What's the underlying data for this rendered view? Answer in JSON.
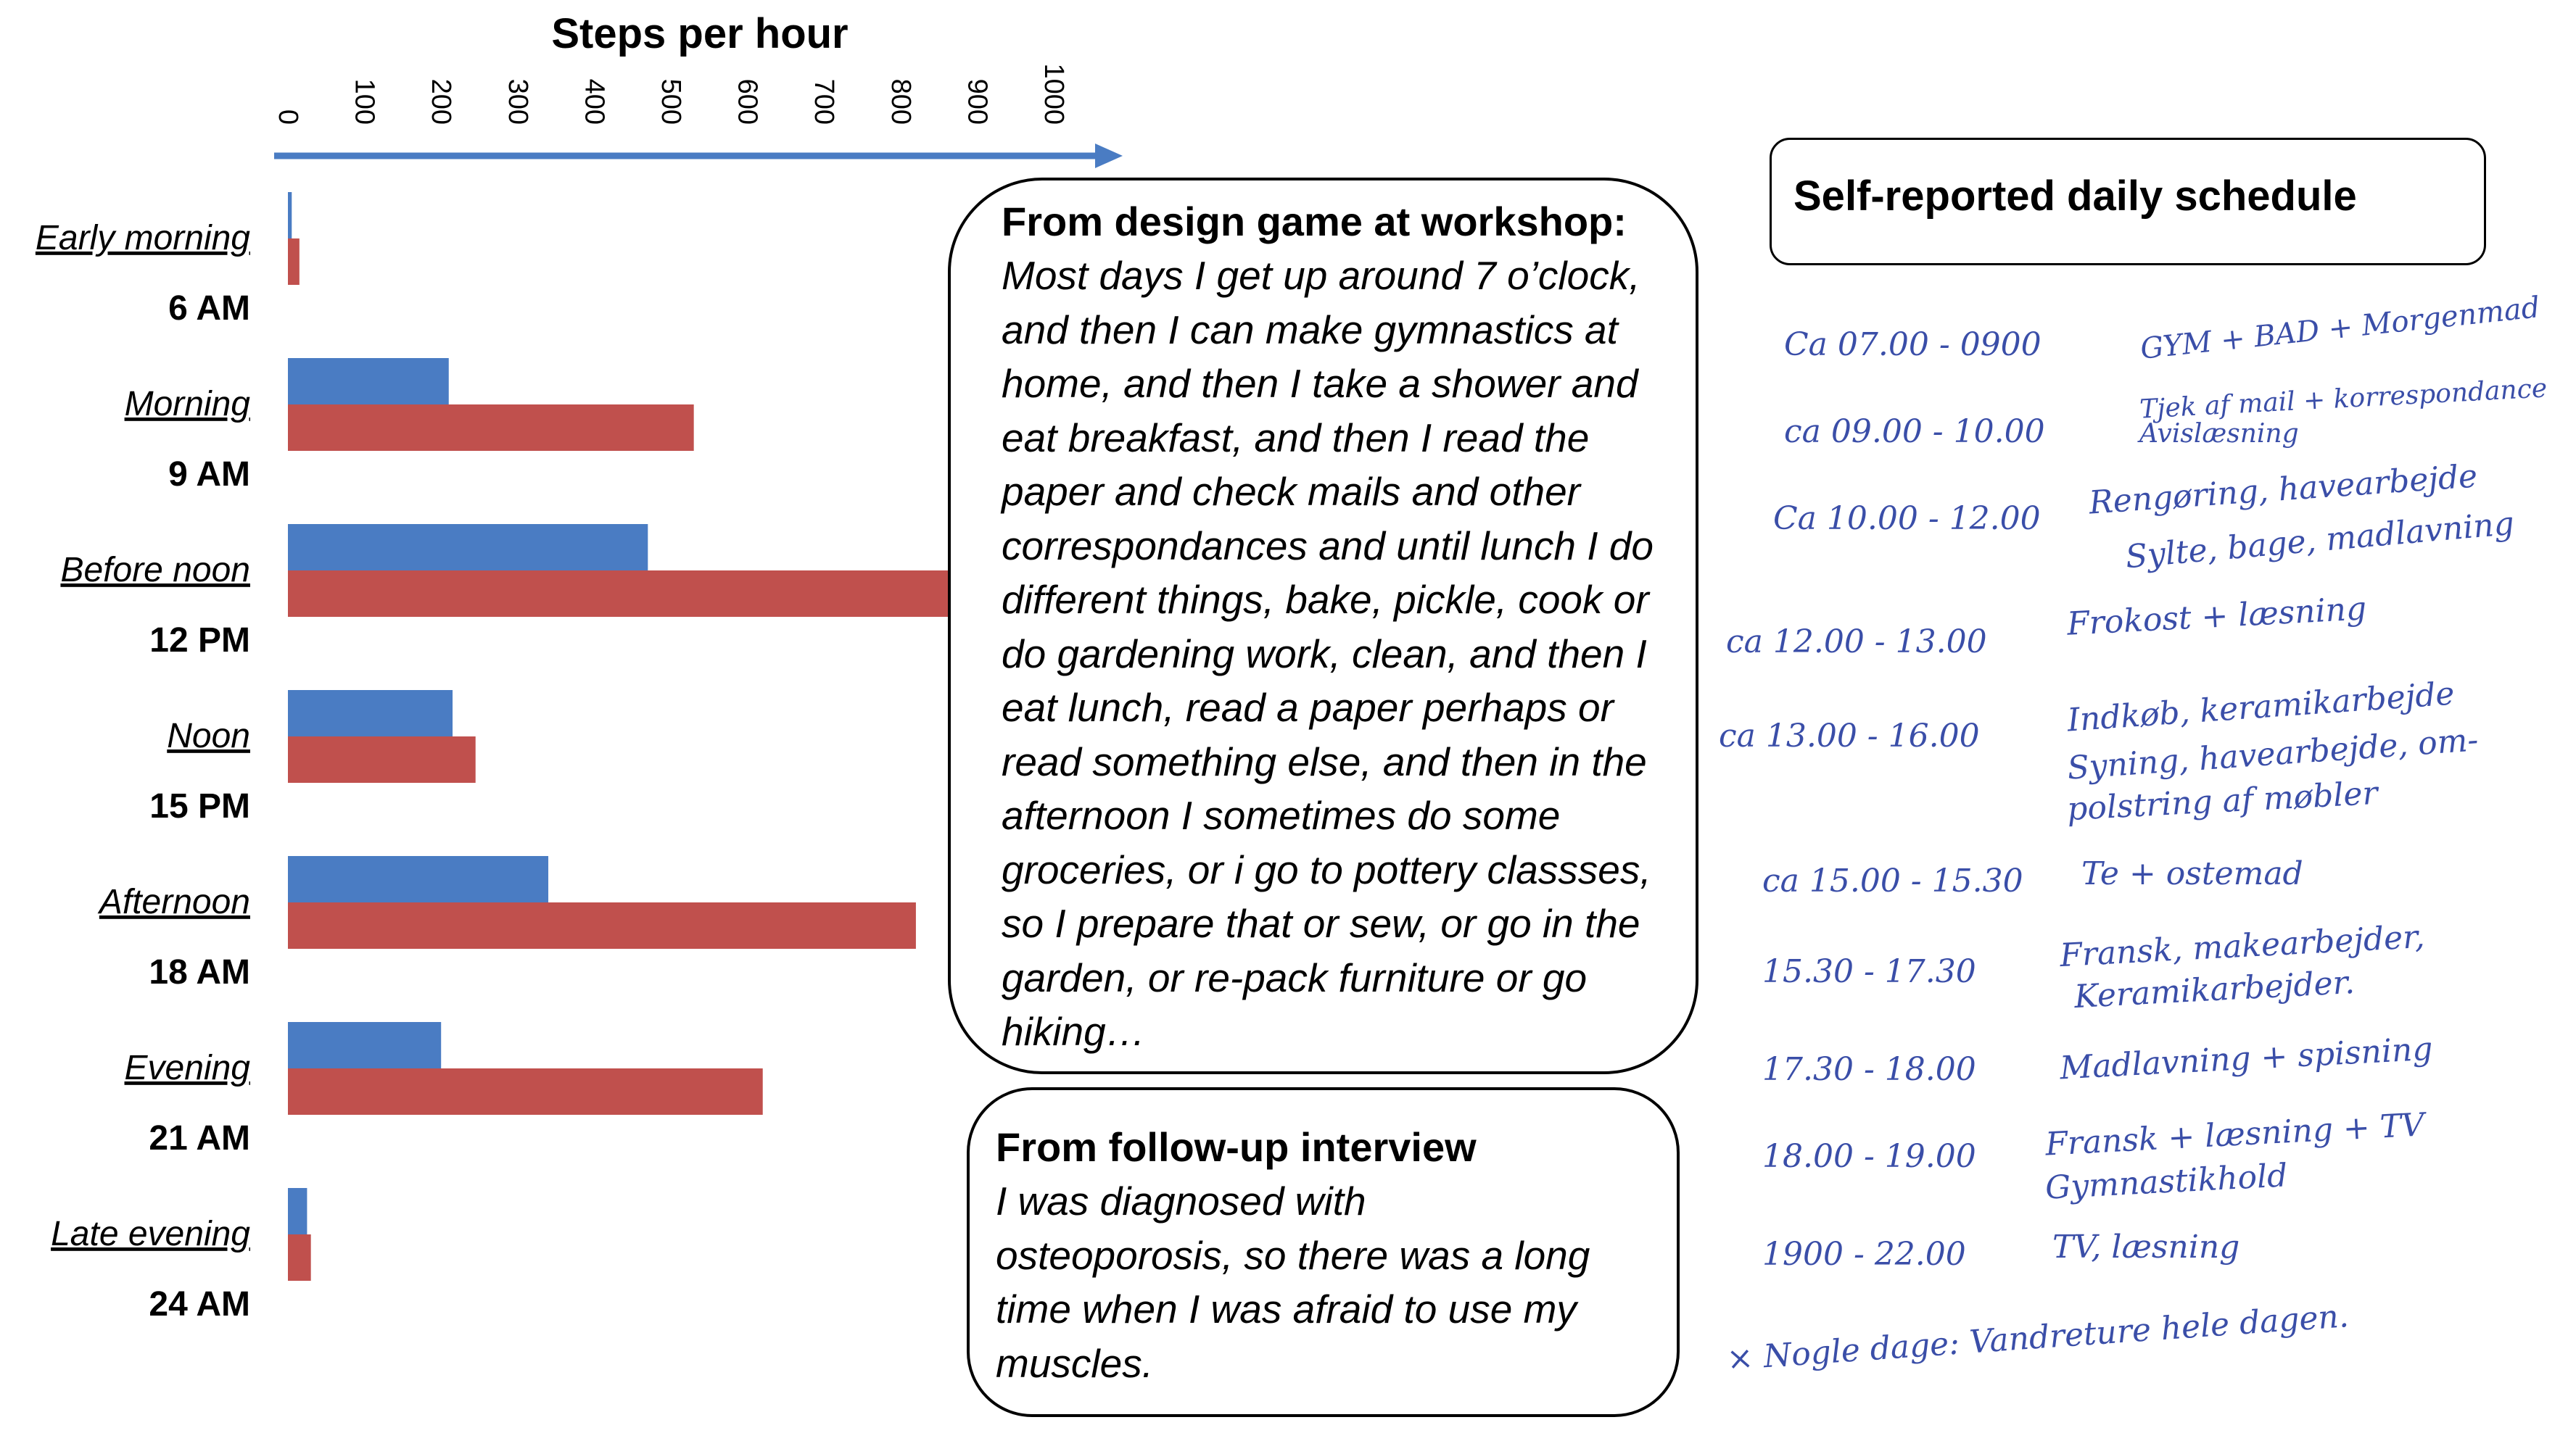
{
  "chart_data": {
    "type": "bar",
    "title": "Steps per hour",
    "xlim": [
      0,
      1000
    ],
    "ticks": [
      "0",
      "100",
      "200",
      "300",
      "400",
      "500",
      "600",
      "700",
      "800",
      "900",
      "1000"
    ],
    "categories": [
      "Early morning",
      "Morning",
      "Before noon",
      "Noon",
      "Afternoon",
      "Evening",
      "Late evening"
    ],
    "time_labels": [
      "6 AM",
      "9 AM",
      "12 PM",
      "15 PM",
      "18 AM",
      "21 AM",
      "24 AM"
    ],
    "series": [
      {
        "values": [
          5,
          210,
          470,
          215,
          340,
          200,
          25
        ],
        "color": "#4a7cc3"
      },
      {
        "values": [
          15,
          530,
          870,
          245,
          820,
          620,
          30
        ],
        "color": "#c0504d"
      }
    ]
  },
  "workshop": {
    "title": "From design game at workshop:",
    "lines": [
      "Most days I get up around 7 o’clock,",
      "and then I can make gymnastics at",
      "home, and then I take a shower and",
      "eat breakfast, and then I read the",
      "paper and check mails and other",
      "correspondances and until lunch I do",
      "different things, bake, pickle, cook or",
      "do gardening work, clean, and then I",
      "eat lunch, read a paper perhaps or",
      "read something else, and then in the",
      "afternoon I sometimes do some",
      "groceries, or i go to pottery classses,",
      "so I prepare that or sew, or go in the",
      "garden, or re-pack furniture or go",
      "hiking…"
    ]
  },
  "interview": {
    "title": "From follow-up interview",
    "lines": [
      "I was diagnosed with",
      "osteoporosis, so there was a long",
      "time when I was afraid to use my",
      "muscles."
    ]
  },
  "schedule": {
    "title": "Self-reported daily schedule",
    "entries": [
      {
        "time": "Ca 07.00 - 0900",
        "activity": "GYM + BAD + Morgenmad"
      },
      {
        "time": "ca 09.00 - 10.00",
        "activity": "Tjek af mail + korrespondance"
      },
      {
        "time": "",
        "activity": "Avislæsning"
      },
      {
        "time": "Ca 10.00 - 12.00",
        "activity": "Rengøring, havearbejde"
      },
      {
        "time": "",
        "activity": "Sylte, bage, madlavning"
      },
      {
        "time": "ca 12.00 - 13.00",
        "activity": "Frokost + læsning"
      },
      {
        "time": "ca 13.00 - 16.00",
        "activity": "Indkøb, keramikarbejde"
      },
      {
        "time": "",
        "activity": "Syning, havearbejde, om-"
      },
      {
        "time": "",
        "activity": "polstring af møbler"
      },
      {
        "time": "ca 15.00 - 15.30",
        "activity": "Te + ostemad"
      },
      {
        "time": "15.30 - 17.30",
        "activity": "Fransk, makearbejder,"
      },
      {
        "time": "",
        "activity": "Keramikarbejder."
      },
      {
        "time": "17.30 - 18.00",
        "activity": "Madlavning + spisning"
      },
      {
        "time": "18.00 - 19.00",
        "activity": "Fransk + læsning + TV"
      },
      {
        "time": "",
        "activity": "Gymnastikhold"
      },
      {
        "time": "1900 - 22.00",
        "activity": "TV, læsning"
      },
      {
        "time": "× Nogle dage: Vandreture hele dagen.",
        "activity": ""
      }
    ]
  }
}
